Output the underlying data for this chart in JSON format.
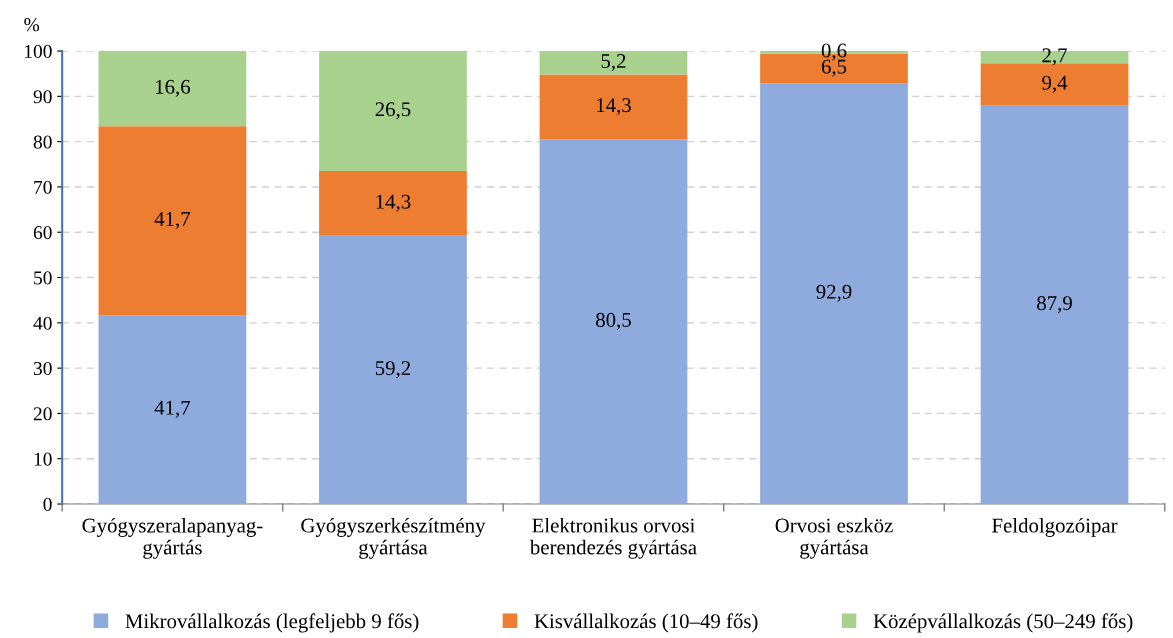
{
  "chart_data": {
    "type": "bar",
    "stacked": true,
    "ylabel": "%",
    "categories": [
      "Gyógyszeralapanyag-\ngyártás",
      "Gyógyszerkészítmény\ngyártása",
      "Elektronikus orvosi\nberendezés gyártása",
      "Orvosi eszköz\ngyártása",
      "Feldolgozóipar"
    ],
    "series": [
      {
        "name": "Mikrovállalkozás (legfeljebb 9 fős)",
        "color": "#8faadc",
        "values": [
          41.7,
          59.2,
          80.5,
          92.9,
          87.9
        ],
        "value_labels": [
          "41,7",
          "59,2",
          "80,5",
          "92,9",
          "87,9"
        ]
      },
      {
        "name": "Kisvállalkozás (10–49 fős)",
        "color": "#ed7d31",
        "values": [
          41.7,
          14.3,
          14.3,
          6.5,
          9.4
        ],
        "value_labels": [
          "41,7",
          "14,3",
          "14,3",
          "6,5",
          "9,4"
        ]
      },
      {
        "name": "Középvállalkozás (50–249 fős)",
        "color": "#a9d18e",
        "values": [
          16.6,
          26.5,
          5.2,
          0.6,
          2.7
        ],
        "value_labels": [
          "16,6",
          "26,5",
          "5,2",
          "0,6",
          "2,7"
        ]
      }
    ],
    "ylim": [
      0,
      100
    ],
    "yticks": [
      0,
      10,
      20,
      30,
      40,
      50,
      60,
      70,
      80,
      90,
      100
    ],
    "grid": "y",
    "legend": "bottom"
  }
}
